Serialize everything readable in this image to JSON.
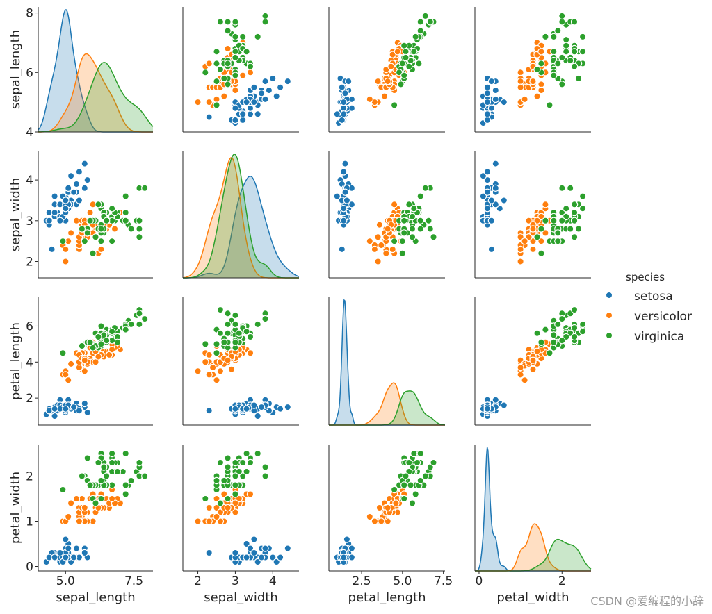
{
  "chart_data": {
    "type": "scatter",
    "kind": "pairplot",
    "hue_title": "species",
    "variables": [
      "sepal_length",
      "sepal_width",
      "petal_length",
      "petal_width"
    ],
    "grid": false,
    "legend_position": "right",
    "axes": {
      "sepal_length": {
        "range": [
          4.0,
          8.2
        ],
        "ticks": [
          "5.0",
          "7.5"
        ],
        "row_ticks": [
          "4",
          "6",
          "8"
        ]
      },
      "sepal_width": {
        "range": [
          1.6,
          4.7
        ],
        "ticks": [
          "2",
          "3",
          "4"
        ],
        "row_ticks": [
          "2",
          "3",
          "4"
        ]
      },
      "petal_length": {
        "range": [
          0.5,
          7.6
        ],
        "ticks": [
          "2.5",
          "5.0",
          "7.5"
        ],
        "row_ticks": [
          "2",
          "4",
          "6"
        ]
      },
      "petal_width": {
        "range": [
          -0.1,
          2.7
        ],
        "ticks": [
          "0",
          "2"
        ],
        "row_ticks": [
          "0",
          "1",
          "2"
        ]
      }
    },
    "series": [
      {
        "name": "setosa",
        "color": "#1f77b4",
        "points": [
          [
            5.1,
            3.5,
            1.4,
            0.2
          ],
          [
            4.9,
            3.0,
            1.4,
            0.2
          ],
          [
            4.7,
            3.2,
            1.3,
            0.2
          ],
          [
            4.6,
            3.1,
            1.5,
            0.2
          ],
          [
            5.0,
            3.6,
            1.4,
            0.2
          ],
          [
            5.4,
            3.9,
            1.7,
            0.4
          ],
          [
            4.6,
            3.4,
            1.4,
            0.3
          ],
          [
            5.0,
            3.4,
            1.5,
            0.2
          ],
          [
            4.4,
            2.9,
            1.4,
            0.2
          ],
          [
            4.9,
            3.1,
            1.5,
            0.1
          ],
          [
            5.4,
            3.7,
            1.5,
            0.2
          ],
          [
            4.8,
            3.4,
            1.6,
            0.2
          ],
          [
            4.8,
            3.0,
            1.4,
            0.1
          ],
          [
            4.3,
            3.0,
            1.1,
            0.1
          ],
          [
            5.8,
            4.0,
            1.2,
            0.2
          ],
          [
            5.7,
            4.4,
            1.5,
            0.4
          ],
          [
            5.4,
            3.9,
            1.3,
            0.4
          ],
          [
            5.1,
            3.5,
            1.4,
            0.3
          ],
          [
            5.7,
            3.8,
            1.7,
            0.3
          ],
          [
            5.1,
            3.8,
            1.5,
            0.3
          ],
          [
            5.4,
            3.4,
            1.7,
            0.2
          ],
          [
            5.1,
            3.7,
            1.5,
            0.4
          ],
          [
            4.6,
            3.6,
            1.0,
            0.2
          ],
          [
            5.1,
            3.3,
            1.7,
            0.5
          ],
          [
            4.8,
            3.4,
            1.9,
            0.2
          ],
          [
            5.0,
            3.0,
            1.6,
            0.2
          ],
          [
            5.0,
            3.4,
            1.6,
            0.4
          ],
          [
            5.2,
            3.5,
            1.5,
            0.2
          ],
          [
            5.2,
            3.4,
            1.4,
            0.2
          ],
          [
            4.7,
            3.2,
            1.6,
            0.2
          ],
          [
            4.8,
            3.1,
            1.6,
            0.2
          ],
          [
            5.4,
            3.4,
            1.5,
            0.4
          ],
          [
            5.2,
            4.1,
            1.5,
            0.1
          ],
          [
            5.5,
            4.2,
            1.4,
            0.2
          ],
          [
            4.9,
            3.1,
            1.5,
            0.2
          ],
          [
            5.0,
            3.2,
            1.2,
            0.2
          ],
          [
            5.5,
            3.5,
            1.3,
            0.2
          ],
          [
            4.9,
            3.6,
            1.4,
            0.1
          ],
          [
            4.4,
            3.0,
            1.3,
            0.2
          ],
          [
            5.1,
            3.4,
            1.5,
            0.2
          ],
          [
            5.0,
            3.5,
            1.3,
            0.3
          ],
          [
            4.5,
            2.3,
            1.3,
            0.3
          ],
          [
            4.4,
            3.2,
            1.3,
            0.2
          ],
          [
            5.0,
            3.5,
            1.6,
            0.6
          ],
          [
            5.1,
            3.8,
            1.9,
            0.4
          ],
          [
            4.8,
            3.0,
            1.4,
            0.3
          ],
          [
            5.1,
            3.8,
            1.6,
            0.2
          ],
          [
            4.6,
            3.2,
            1.4,
            0.2
          ],
          [
            5.3,
            3.7,
            1.5,
            0.2
          ],
          [
            5.0,
            3.3,
            1.4,
            0.2
          ]
        ]
      },
      {
        "name": "versicolor",
        "color": "#ff7f0e",
        "points": [
          [
            7.0,
            3.2,
            4.7,
            1.4
          ],
          [
            6.4,
            3.2,
            4.5,
            1.5
          ],
          [
            6.9,
            3.1,
            4.9,
            1.5
          ],
          [
            5.5,
            2.3,
            4.0,
            1.3
          ],
          [
            6.5,
            2.8,
            4.6,
            1.5
          ],
          [
            5.7,
            2.8,
            4.5,
            1.3
          ],
          [
            6.3,
            3.3,
            4.7,
            1.6
          ],
          [
            4.9,
            2.4,
            3.3,
            1.0
          ],
          [
            6.6,
            2.9,
            4.6,
            1.3
          ],
          [
            5.2,
            2.7,
            3.9,
            1.4
          ],
          [
            5.0,
            2.0,
            3.5,
            1.0
          ],
          [
            5.9,
            3.0,
            4.2,
            1.5
          ],
          [
            6.0,
            2.2,
            4.0,
            1.0
          ],
          [
            6.1,
            2.9,
            4.7,
            1.4
          ],
          [
            5.6,
            2.9,
            3.6,
            1.3
          ],
          [
            6.7,
            3.1,
            4.4,
            1.4
          ],
          [
            5.6,
            3.0,
            4.5,
            1.5
          ],
          [
            5.8,
            2.7,
            4.1,
            1.0
          ],
          [
            6.2,
            2.2,
            4.5,
            1.5
          ],
          [
            5.6,
            2.5,
            3.9,
            1.1
          ],
          [
            5.9,
            3.2,
            4.8,
            1.8
          ],
          [
            6.1,
            2.8,
            4.0,
            1.3
          ],
          [
            6.3,
            2.5,
            4.9,
            1.5
          ],
          [
            6.1,
            2.8,
            4.7,
            1.2
          ],
          [
            6.4,
            2.9,
            4.3,
            1.3
          ],
          [
            6.6,
            3.0,
            4.4,
            1.4
          ],
          [
            6.8,
            2.8,
            4.8,
            1.4
          ],
          [
            6.7,
            3.0,
            5.0,
            1.7
          ],
          [
            6.0,
            2.9,
            4.5,
            1.5
          ],
          [
            5.7,
            2.6,
            3.5,
            1.0
          ],
          [
            5.5,
            2.4,
            3.8,
            1.1
          ],
          [
            5.5,
            2.4,
            3.7,
            1.0
          ],
          [
            5.8,
            2.7,
            3.9,
            1.2
          ],
          [
            6.0,
            2.7,
            5.1,
            1.6
          ],
          [
            5.4,
            3.0,
            4.5,
            1.5
          ],
          [
            6.0,
            3.4,
            4.5,
            1.6
          ],
          [
            6.7,
            3.1,
            4.7,
            1.5
          ],
          [
            6.3,
            2.3,
            4.4,
            1.3
          ],
          [
            5.6,
            3.0,
            4.1,
            1.3
          ],
          [
            5.5,
            2.5,
            4.0,
            1.3
          ],
          [
            5.5,
            2.6,
            4.4,
            1.2
          ],
          [
            6.1,
            3.0,
            4.6,
            1.4
          ],
          [
            5.8,
            2.6,
            4.0,
            1.2
          ],
          [
            5.0,
            2.3,
            3.3,
            1.0
          ],
          [
            5.6,
            2.7,
            4.2,
            1.3
          ],
          [
            5.7,
            3.0,
            4.2,
            1.2
          ],
          [
            5.7,
            2.9,
            4.2,
            1.3
          ],
          [
            6.2,
            2.9,
            4.3,
            1.3
          ],
          [
            5.1,
            2.5,
            3.0,
            1.1
          ],
          [
            5.7,
            2.8,
            4.1,
            1.3
          ]
        ]
      },
      {
        "name": "virginica",
        "color": "#2ca02c",
        "points": [
          [
            6.3,
            3.3,
            6.0,
            2.5
          ],
          [
            5.8,
            2.7,
            5.1,
            1.9
          ],
          [
            7.1,
            3.0,
            5.9,
            2.1
          ],
          [
            6.3,
            2.9,
            5.6,
            1.8
          ],
          [
            6.5,
            3.0,
            5.8,
            2.2
          ],
          [
            7.6,
            3.0,
            6.6,
            2.1
          ],
          [
            4.9,
            2.5,
            4.5,
            1.7
          ],
          [
            7.3,
            2.9,
            6.3,
            1.8
          ],
          [
            6.7,
            2.5,
            5.8,
            1.8
          ],
          [
            7.2,
            3.6,
            6.1,
            2.5
          ],
          [
            6.5,
            3.2,
            5.1,
            2.0
          ],
          [
            6.4,
            2.7,
            5.3,
            1.9
          ],
          [
            6.8,
            3.0,
            5.5,
            2.1
          ],
          [
            5.7,
            2.5,
            5.0,
            2.0
          ],
          [
            5.8,
            2.8,
            5.1,
            2.4
          ],
          [
            6.4,
            3.2,
            5.3,
            2.3
          ],
          [
            6.5,
            3.0,
            5.5,
            1.8
          ],
          [
            7.7,
            3.8,
            6.7,
            2.2
          ],
          [
            7.7,
            2.6,
            6.9,
            2.3
          ],
          [
            6.0,
            2.2,
            5.0,
            1.5
          ],
          [
            6.9,
            3.2,
            5.7,
            2.3
          ],
          [
            5.6,
            2.8,
            4.9,
            2.0
          ],
          [
            7.7,
            2.8,
            6.7,
            2.0
          ],
          [
            6.3,
            2.7,
            4.9,
            1.8
          ],
          [
            6.7,
            3.3,
            5.7,
            2.1
          ],
          [
            7.2,
            3.2,
            6.0,
            1.8
          ],
          [
            6.2,
            2.8,
            4.8,
            1.8
          ],
          [
            6.1,
            3.0,
            4.9,
            1.8
          ],
          [
            6.4,
            2.8,
            5.6,
            2.1
          ],
          [
            7.2,
            3.0,
            5.8,
            1.6
          ],
          [
            7.4,
            2.8,
            6.1,
            1.9
          ],
          [
            7.9,
            3.8,
            6.4,
            2.0
          ],
          [
            6.4,
            2.8,
            5.6,
            2.2
          ],
          [
            6.3,
            2.8,
            5.1,
            1.5
          ],
          [
            6.1,
            2.6,
            5.6,
            1.4
          ],
          [
            7.7,
            3.0,
            6.1,
            2.3
          ],
          [
            6.3,
            3.4,
            5.6,
            2.4
          ],
          [
            6.4,
            3.1,
            5.5,
            1.8
          ],
          [
            6.0,
            3.0,
            4.8,
            1.8
          ],
          [
            6.9,
            3.1,
            5.4,
            2.1
          ],
          [
            6.7,
            3.1,
            5.6,
            2.4
          ],
          [
            6.9,
            3.1,
            5.1,
            2.3
          ],
          [
            5.8,
            2.7,
            5.1,
            1.9
          ],
          [
            6.8,
            3.2,
            5.9,
            2.3
          ],
          [
            6.7,
            3.3,
            5.7,
            2.5
          ],
          [
            6.7,
            3.0,
            5.2,
            2.3
          ],
          [
            6.3,
            2.5,
            5.0,
            1.9
          ],
          [
            6.5,
            3.0,
            5.2,
            2.0
          ],
          [
            6.2,
            3.4,
            5.4,
            2.3
          ],
          [
            5.9,
            3.0,
            5.1,
            1.8
          ]
        ]
      }
    ]
  },
  "watermark": "CSDN @爱编程的小辞"
}
